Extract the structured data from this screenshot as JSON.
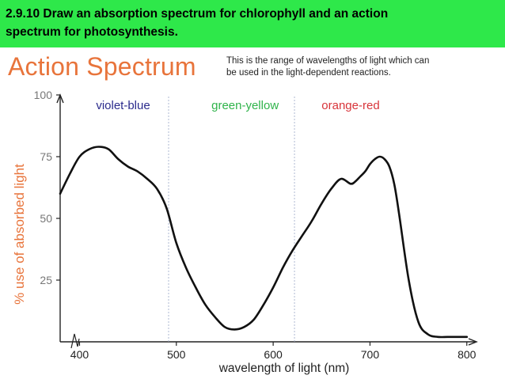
{
  "header": {
    "title_line1": "2.9.10 Draw an absorption spectrum for chlorophyll and an action",
    "title_line2": "spectrum for photosynthesis."
  },
  "slide": {
    "heading": "Action Spectrum",
    "description_line1": "This is the range of wavelengths of light which can",
    "description_line2": "be used in the light-dependent reactions."
  },
  "colors": {
    "banner": "#2ee84a",
    "heading": "#e8743b",
    "ylabel": "#e8743b",
    "violet_blue": "#2b2b8c",
    "green_yellow": "#2fb34a",
    "orange_red": "#d8343a",
    "curve": "#111111"
  },
  "chart_data": {
    "type": "line",
    "title": "",
    "xlabel": "wavelength of light (nm)",
    "ylabel": "% use of absorbed light",
    "xlim": [
      380,
      810
    ],
    "ylim": [
      0,
      100
    ],
    "x_ticks": [
      "400",
      "500",
      "600",
      "700",
      "800"
    ],
    "x_tick_values": [
      400,
      500,
      600,
      700,
      800
    ],
    "y_ticks": [
      "100",
      "75",
      "50",
      "25"
    ],
    "y_tick_values": [
      100,
      75,
      50,
      25
    ],
    "grid": false,
    "regions": [
      {
        "label": "violet-blue",
        "x_center": 445,
        "color": "#2b2b8c"
      },
      {
        "label": "green-yellow",
        "x_center": 571,
        "color": "#2fb34a"
      },
      {
        "label": "orange-red",
        "x_center": 680,
        "color": "#d8343a"
      }
    ],
    "divider_x": [
      492,
      622
    ],
    "series": [
      {
        "x": [
          380,
          390,
          400,
          410,
          420,
          430,
          440,
          450,
          460,
          470,
          480,
          490,
          500,
          510,
          520,
          530,
          540,
          550,
          560,
          570,
          580,
          590,
          600,
          610,
          620,
          630,
          640,
          650,
          660,
          670,
          680,
          685,
          690,
          695,
          700,
          705,
          710,
          715,
          720,
          725,
          730,
          740,
          750,
          760,
          770,
          780,
          790,
          800
        ],
        "y": [
          60,
          68,
          75,
          78,
          79,
          78,
          74,
          71,
          69,
          66,
          62,
          54,
          40,
          30,
          22,
          15,
          10,
          6,
          5,
          6,
          9,
          15,
          22,
          30,
          37,
          43,
          49,
          56,
          62,
          66,
          64,
          65,
          67,
          69,
          72,
          74,
          75,
          74,
          71,
          64,
          52,
          25,
          8,
          3,
          2,
          2,
          2,
          2
        ]
      }
    ]
  }
}
